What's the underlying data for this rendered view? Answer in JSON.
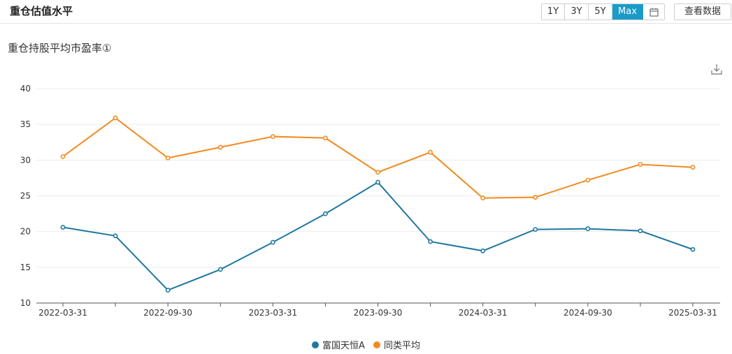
{
  "header": {
    "title": "重仓估值水平",
    "range_buttons": [
      "1Y",
      "3Y",
      "5Y",
      "Max"
    ],
    "active_range": "Max",
    "calendar_icon": "calendar-icon",
    "view_data_label": "查看数据"
  },
  "subtitle": "重仓持股平均市盈率①",
  "download_icon": "download-icon",
  "colors": {
    "series1": "#1f77a0",
    "series2": "#f28a1e",
    "accent": "#1a9cc9"
  },
  "chart_data": {
    "type": "line",
    "x": [
      "2022-03-31",
      "2022-06-30",
      "2022-09-30",
      "2022-12-31",
      "2023-03-31",
      "2023-06-30",
      "2023-09-30",
      "2023-12-31",
      "2024-03-31",
      "2024-06-30",
      "2024-09-30",
      "2024-12-31",
      "2025-03-31"
    ],
    "x_tick_labels": [
      "2022-03-31",
      "2022-09-30",
      "2023-03-31",
      "2023-09-30",
      "2024-03-31",
      "2024-09-30",
      "2025-03-31"
    ],
    "y_ticks": [
      10,
      15,
      20,
      25,
      30,
      35,
      40
    ],
    "ylim": [
      10,
      40
    ],
    "grid": true,
    "legend_position": "bottom",
    "series": [
      {
        "name": "富国天恒A",
        "color": "#1f77a0",
        "values": [
          20.6,
          19.4,
          11.8,
          14.7,
          18.5,
          22.5,
          26.9,
          18.6,
          17.3,
          20.3,
          20.4,
          20.1,
          17.5
        ]
      },
      {
        "name": "同类平均",
        "color": "#f28a1e",
        "values": [
          30.5,
          35.9,
          30.3,
          31.8,
          33.3,
          33.1,
          28.3,
          31.1,
          24.7,
          24.8,
          27.2,
          29.4,
          29.0
        ]
      }
    ]
  }
}
